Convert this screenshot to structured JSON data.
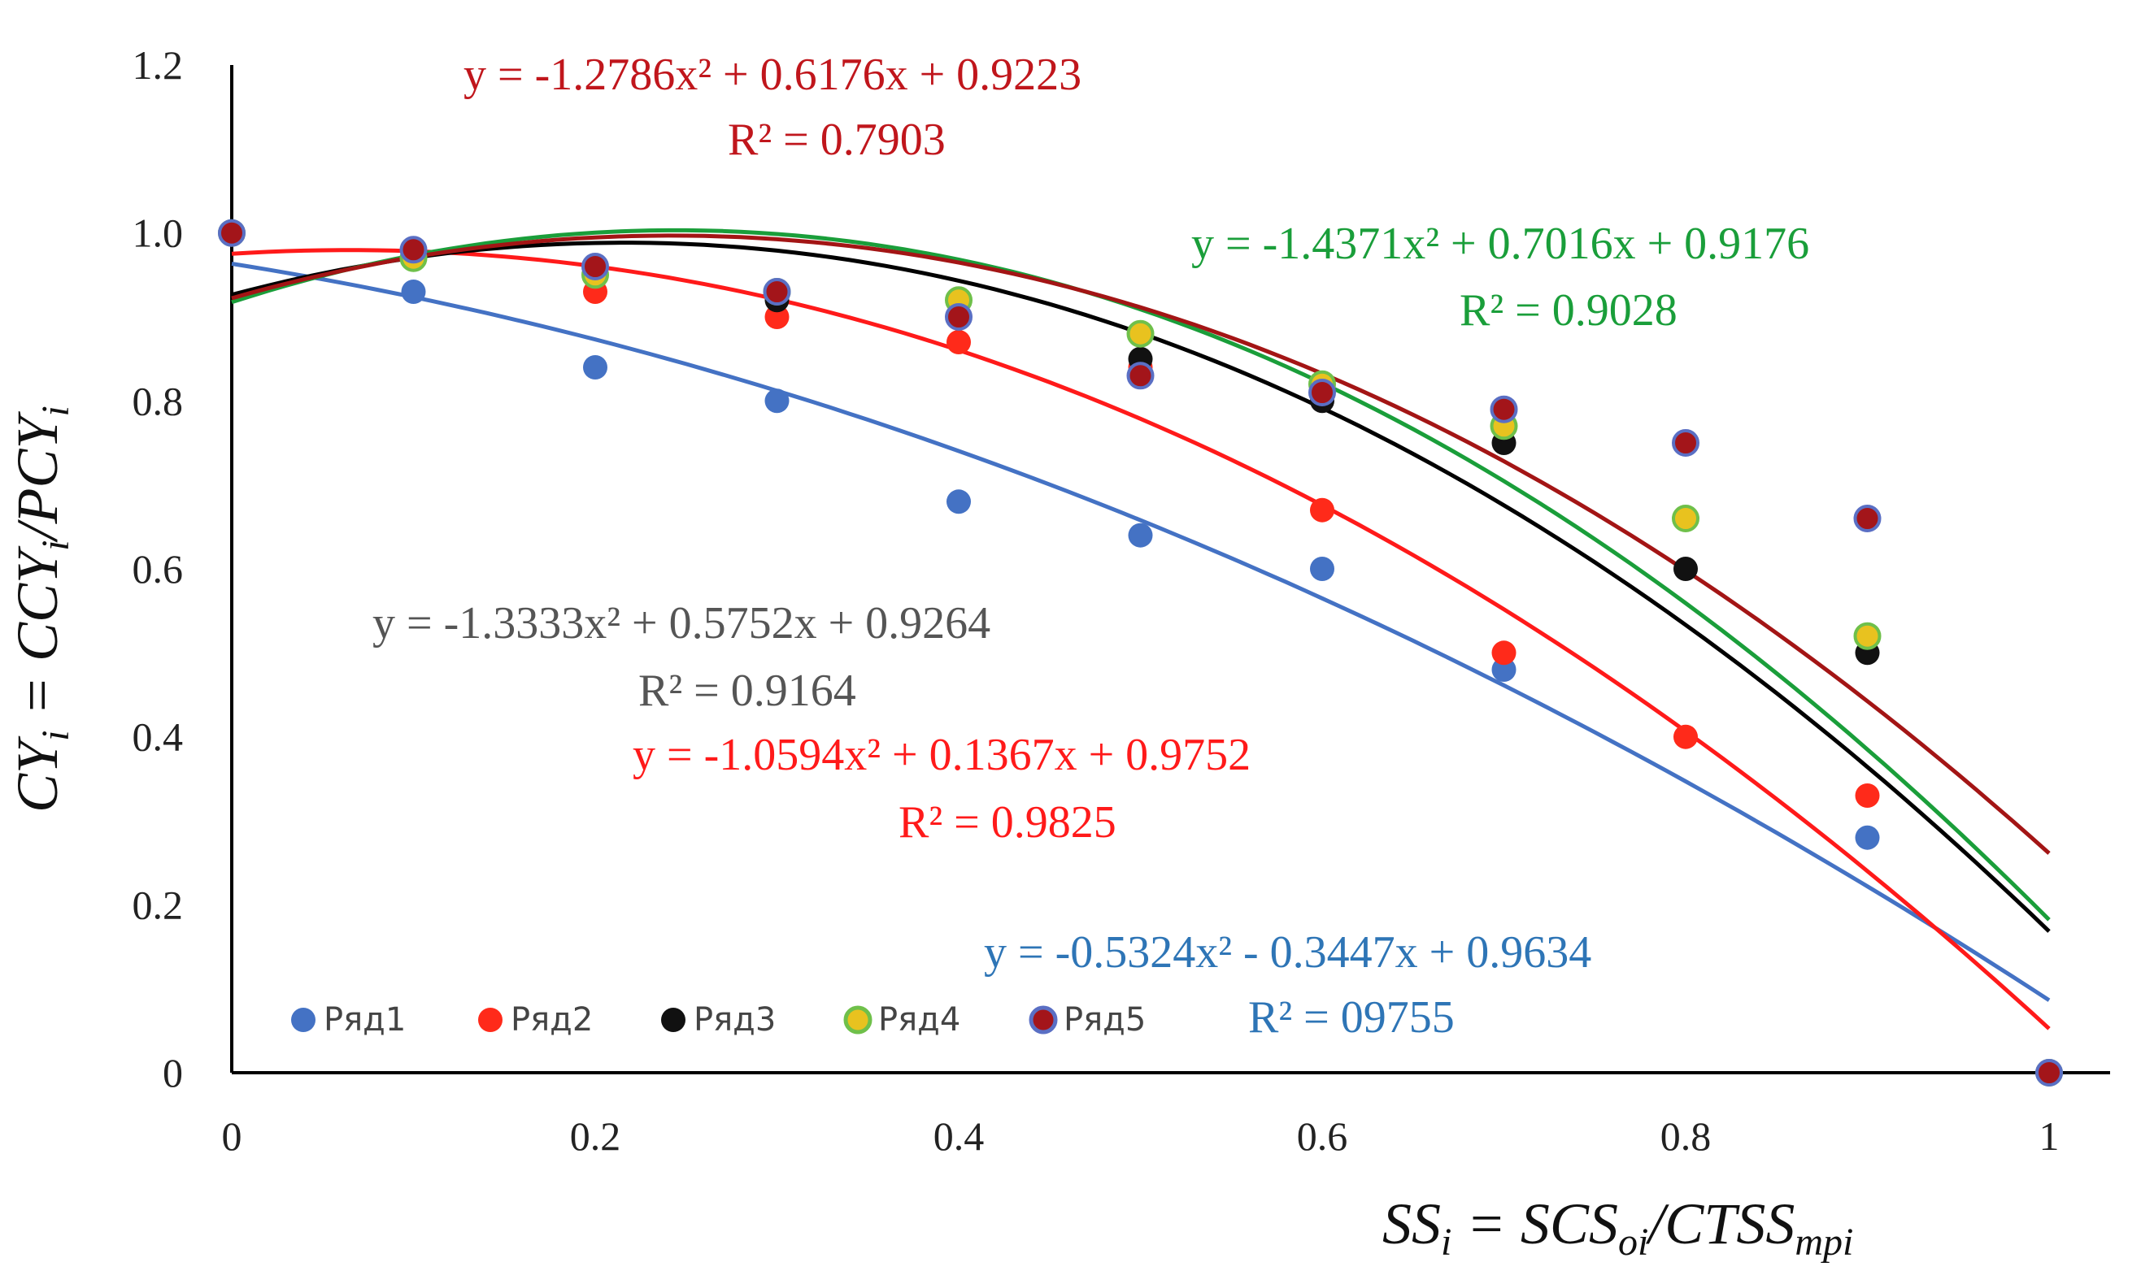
{
  "chart_data": {
    "type": "scatter",
    "xlabel": "SS_i = SCS_oi/CTSS_mpi",
    "ylabel": "CY_i = CCY_i/PCY_i",
    "xlim": [
      0,
      1
    ],
    "ylim": [
      0,
      1.2
    ],
    "x_ticks": [
      "0",
      "0.2",
      "0.4",
      "0.6",
      "0.8",
      "1"
    ],
    "y_ticks": [
      "0",
      "0.2",
      "0.4",
      "0.6",
      "0.8",
      "1.0",
      "1.2"
    ],
    "grid": false,
    "legend_position": "bottom-left",
    "x": [
      0,
      0.1,
      0.2,
      0.3,
      0.4,
      0.5,
      0.6,
      0.7,
      0.8,
      0.9,
      1.0
    ],
    "series": [
      {
        "name": "Ряд1",
        "color": "#4472c4",
        "values": [
          1.0,
          0.93,
          0.84,
          0.8,
          0.68,
          0.64,
          0.6,
          0.48,
          null,
          0.28,
          0.0
        ],
        "trendline": {
          "a": -0.5324,
          "b": -0.3447,
          "c": 0.9634,
          "color": "#4472c4"
        },
        "equation": "y = -0.5324x² - 0.3447x + 0.9634",
        "r2": "R² = 09755",
        "label_color": "#2e75b6"
      },
      {
        "name": "Ряд2",
        "color": "#ff2a1a",
        "values": [
          1.0,
          0.97,
          0.93,
          0.9,
          0.87,
          0.84,
          0.67,
          0.5,
          0.4,
          0.33,
          0.0
        ],
        "trendline": {
          "a": -1.0594,
          "b": 0.1367,
          "c": 0.9752,
          "color": "#ff1a1a"
        },
        "equation": "y = -1.0594x² + 0.1367x + 0.9752",
        "r2": "R² = 0.9825",
        "label_color": "#ff1a1a"
      },
      {
        "name": "Ряд3",
        "color": "#111111",
        "values": [
          1.0,
          0.97,
          0.95,
          0.92,
          0.9,
          0.85,
          0.8,
          0.75,
          0.6,
          0.5,
          0.0
        ],
        "trendline": {
          "a": -1.3333,
          "b": 0.5752,
          "c": 0.9264,
          "color": "#000000"
        },
        "equation": "y = -1.3333x² + 0.5752x + 0.9264",
        "r2": "R² = 0.9164",
        "label_color": "#555555"
      },
      {
        "name": "Ряд4",
        "color": "#e8c21f",
        "values": [
          1.0,
          0.97,
          0.95,
          0.93,
          0.92,
          0.88,
          0.82,
          0.77,
          0.66,
          0.52,
          0.0
        ],
        "trendline": {
          "a": -1.4371,
          "b": 0.7016,
          "c": 0.9176,
          "color": "#1a9e3a"
        },
        "equation": "y = -1.4371x² + 0.7016x + 0.9176",
        "r2": "R² = 0.9028",
        "label_color": "#1a9e3a"
      },
      {
        "name": "Ряд5",
        "color": "#a3151a",
        "values": [
          1.0,
          0.98,
          0.96,
          0.93,
          0.9,
          0.83,
          0.81,
          0.79,
          0.75,
          0.66,
          0.0
        ],
        "trendline": {
          "a": -1.2786,
          "b": 0.6176,
          "c": 0.9223,
          "color": "#a31515"
        },
        "equation": "y = -1.2786x² + 0.6176x + 0.9223",
        "r2": "R² = 0.7903",
        "label_color": "#c0161c"
      }
    ]
  }
}
